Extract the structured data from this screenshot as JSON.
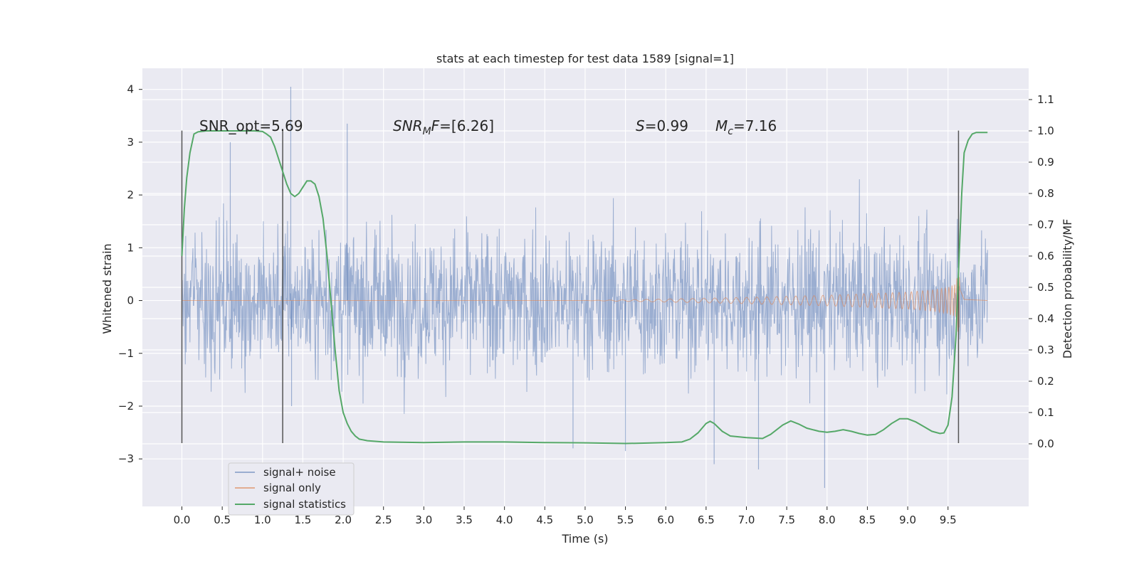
{
  "chart_data": {
    "type": "line",
    "title": "stats at each timestep for test data 1589 [signal=1]",
    "xlabel": "Time (s)",
    "ylabel": "Whitened strain",
    "ylabel_right": "Detection probability/MF",
    "xlim": [
      -0.49,
      10.5
    ],
    "ylim": [
      -3.9,
      4.4
    ],
    "ylim_right": [
      -0.2,
      1.2
    ],
    "x_ticks": [
      "0.0",
      "0.5",
      "1.0",
      "1.5",
      "2.0",
      "2.5",
      "3.0",
      "3.5",
      "4.0",
      "4.5",
      "5.0",
      "5.5",
      "6.0",
      "6.5",
      "7.0",
      "7.5",
      "8.0",
      "8.5",
      "9.0",
      "9.5"
    ],
    "y_ticks": [
      "4",
      "3",
      "2",
      "1",
      "0",
      "−1",
      "−2",
      "−3"
    ],
    "y_ticks_right": [
      "1.1",
      "1.0",
      "0.9",
      "0.8",
      "0.7",
      "0.6",
      "0.5",
      "0.4",
      "0.3",
      "0.2",
      "0.1",
      "0.0"
    ],
    "grid": true,
    "legend_position": "bottom-left",
    "annotations": {
      "snr_opt": "SNR_opt=5.69",
      "snr_mf_base": "SNR",
      "snr_mf_sub": "M",
      "snr_mf_f": "F",
      "snr_mf_value": "=[6.26]",
      "s_sym": "S",
      "s_value": "=0.99",
      "mc_sym": "M",
      "mc_sub": "c",
      "mc_value": "=7.16"
    },
    "vertical_markers": [
      0.0,
      1.25,
      9.63
    ],
    "series": [
      {
        "name": "signal+ noise",
        "color": "#4c72b0",
        "noise_band": {
          "x_start": 0.0,
          "x_end": 9.99,
          "typical_amplitude": 1.4,
          "max": 4.05,
          "min": -3.55
        }
      },
      {
        "name": "signal only",
        "color": "#dd8452",
        "envelope": {
          "x": [
            0.0,
            5.0,
            6.0,
            7.0,
            8.0,
            9.0,
            9.3,
            9.5,
            9.6,
            9.63,
            9.65,
            9.7,
            9.99
          ],
          "amp": [
            0.0,
            0.0,
            0.03,
            0.06,
            0.1,
            0.16,
            0.2,
            0.25,
            0.32,
            0.7,
            0.2,
            0.02,
            0.0
          ]
        }
      },
      {
        "name": "signal statistics",
        "color": "#55a868",
        "x": [
          0.0,
          0.03,
          0.06,
          0.1,
          0.15,
          0.2,
          0.3,
          0.5,
          0.7,
          0.9,
          1.0,
          1.05,
          1.1,
          1.15,
          1.2,
          1.25,
          1.3,
          1.35,
          1.4,
          1.45,
          1.5,
          1.55,
          1.6,
          1.65,
          1.7,
          1.75,
          1.8,
          1.85,
          1.9,
          1.95,
          2.0,
          2.05,
          2.1,
          2.15,
          2.2,
          2.3,
          2.5,
          3.0,
          3.5,
          4.0,
          4.5,
          5.0,
          5.5,
          6.0,
          6.2,
          6.3,
          6.4,
          6.5,
          6.55,
          6.6,
          6.7,
          6.8,
          7.0,
          7.2,
          7.3,
          7.45,
          7.55,
          7.65,
          7.75,
          7.9,
          8.0,
          8.1,
          8.2,
          8.3,
          8.4,
          8.5,
          8.6,
          8.7,
          8.8,
          8.9,
          9.0,
          9.1,
          9.2,
          9.3,
          9.4,
          9.45,
          9.5,
          9.55,
          9.6,
          9.63,
          9.67,
          9.7,
          9.75,
          9.8,
          9.85,
          9.9,
          9.99
        ],
        "values": [
          0.6,
          0.75,
          0.85,
          0.93,
          0.99,
          0.997,
          1.0,
          1.0,
          1.0,
          1.0,
          0.998,
          0.99,
          0.98,
          0.95,
          0.91,
          0.87,
          0.83,
          0.8,
          0.79,
          0.8,
          0.82,
          0.84,
          0.84,
          0.83,
          0.79,
          0.72,
          0.6,
          0.45,
          0.3,
          0.17,
          0.1,
          0.065,
          0.04,
          0.025,
          0.015,
          0.01,
          0.006,
          0.004,
          0.006,
          0.006,
          0.004,
          0.003,
          0.001,
          0.004,
          0.006,
          0.015,
          0.035,
          0.065,
          0.072,
          0.065,
          0.04,
          0.025,
          0.02,
          0.017,
          0.03,
          0.06,
          0.073,
          0.063,
          0.05,
          0.04,
          0.037,
          0.04,
          0.045,
          0.04,
          0.033,
          0.028,
          0.03,
          0.045,
          0.065,
          0.08,
          0.08,
          0.07,
          0.055,
          0.04,
          0.033,
          0.035,
          0.06,
          0.15,
          0.35,
          0.55,
          0.8,
          0.93,
          0.97,
          0.99,
          0.995,
          0.995,
          0.995
        ]
      }
    ],
    "colors": {
      "background": "#eaeaf2",
      "grid": "#ffffff",
      "marker": "#555555"
    }
  }
}
